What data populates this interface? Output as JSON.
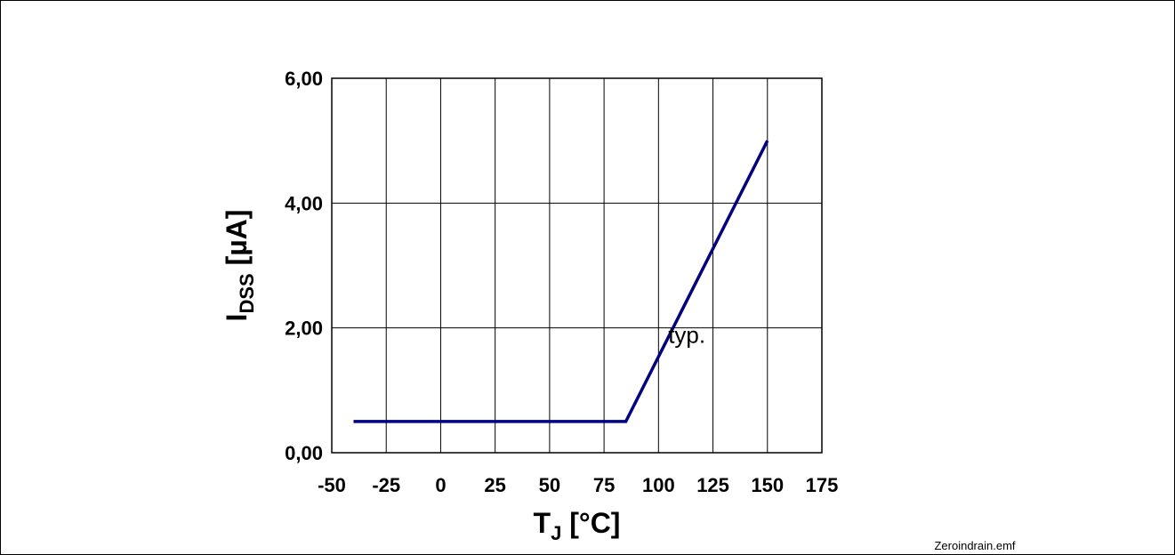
{
  "chart_data": {
    "type": "line",
    "xlabel": {
      "main": "T",
      "sub": "J",
      "unit": " [°C]"
    },
    "ylabel": {
      "main": "I",
      "sub": "DSS",
      "unit": " [µA]"
    },
    "xlim": [
      -50,
      175
    ],
    "ylim": [
      0,
      6
    ],
    "x_ticks": [
      -50,
      -25,
      0,
      25,
      50,
      75,
      100,
      125,
      150,
      175
    ],
    "y_ticks": [
      0,
      2,
      4,
      6
    ],
    "y_tick_labels": [
      "0,00",
      "2,00",
      "4,00",
      "6,00"
    ],
    "x_grid_step": 25,
    "y_grid_step": 2,
    "grid": true,
    "series": [
      {
        "x": [
          -40,
          85,
          150
        ],
        "y": [
          0.5,
          0.5,
          5.0
        ],
        "color": "#000080"
      }
    ],
    "annotations": [
      {
        "text": "typ.",
        "x": 113,
        "y": 1.9
      }
    ]
  },
  "footer": {
    "filename": "Zeroindrain.emf"
  }
}
